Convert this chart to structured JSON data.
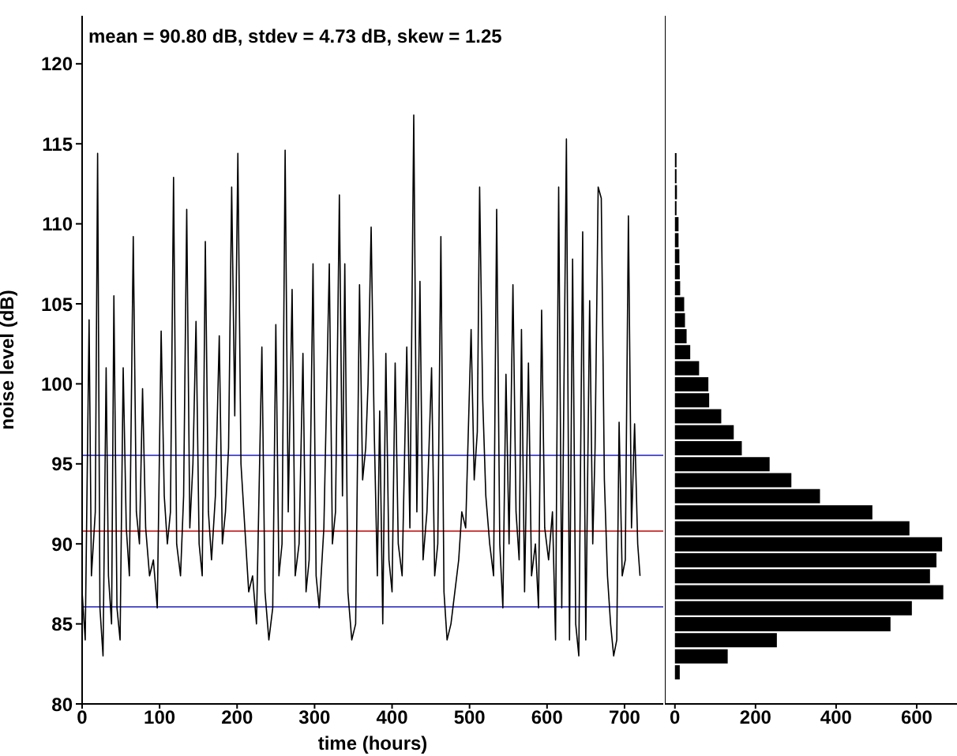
{
  "chart_data": [
    {
      "type": "line",
      "xlabel": "time (hours)",
      "ylabel": "noise level (dB)",
      "annotations": [
        "mean = 90.80 dB, stdev = 4.73 dB, skew = 1.25"
      ],
      "xlim": [
        0,
        750
      ],
      "xticks": [
        0,
        100,
        200,
        300,
        400,
        500,
        600,
        700
      ],
      "ylim": [
        80,
        123
      ],
      "yticks": [
        80,
        85,
        90,
        95,
        100,
        105,
        110,
        115,
        120
      ],
      "grid": false,
      "legend": false,
      "marker": "none",
      "line_style": "solid",
      "ref_lines": [
        {
          "axis": "y",
          "value": 90.8,
          "color": "#cc4444"
        },
        {
          "axis": "y",
          "value": 95.53,
          "color": "#5555cc"
        },
        {
          "axis": "y",
          "value": 86.07,
          "color": "#5555cc"
        }
      ],
      "series": [
        {
          "color": "#000000",
          "x": [
            0,
            4,
            9,
            12,
            17,
            20,
            23,
            27,
            31,
            34,
            38,
            41,
            45,
            49,
            53,
            57,
            61,
            66,
            70,
            74,
            78,
            82,
            87,
            92,
            97,
            102,
            106,
            110,
            114,
            118,
            122,
            127,
            131,
            135,
            139,
            143,
            147,
            151,
            155,
            159,
            163,
            167,
            172,
            177,
            181,
            185,
            189,
            193,
            197,
            201,
            205,
            210,
            215,
            220,
            225,
            232,
            236,
            241,
            246,
            250,
            254,
            258,
            262,
            266,
            271,
            275,
            280,
            285,
            289,
            293,
            298,
            302,
            306,
            312,
            319,
            323,
            327,
            332,
            336,
            339,
            343,
            348,
            353,
            358,
            362,
            366,
            369,
            373,
            377,
            381,
            384,
            388,
            392,
            396,
            400,
            404,
            408,
            413,
            419,
            423,
            428,
            432,
            436,
            440,
            445,
            451,
            455,
            459,
            463,
            467,
            471,
            476,
            481,
            486,
            490,
            495,
            502,
            506,
            510,
            513,
            517,
            521,
            526,
            531,
            535,
            539,
            543,
            547,
            551,
            556,
            560,
            564,
            567,
            571,
            576,
            580,
            585,
            589,
            593,
            597,
            602,
            607,
            611,
            615,
            619,
            625,
            629,
            633,
            637,
            641,
            646,
            650,
            655,
            659,
            662,
            666,
            670,
            674,
            678,
            682,
            686,
            690,
            693,
            697,
            701,
            705,
            709,
            713,
            717,
            720
          ],
          "values": [
            87,
            84,
            104,
            88,
            92,
            114.4,
            86,
            83,
            101,
            88,
            85,
            105.5,
            86,
            84,
            101,
            91,
            88,
            109.2,
            92,
            90,
            99.7,
            91,
            88,
            89,
            86,
            103.3,
            93,
            90,
            92,
            112.9,
            90,
            88,
            93,
            110.9,
            91,
            95,
            103.9,
            90,
            88,
            108.9,
            92,
            89,
            93,
            103,
            90,
            92,
            96,
            112.3,
            98,
            114.4,
            95,
            91,
            87,
            88,
            85,
            102.3,
            87,
            84,
            86,
            103.7,
            88,
            90,
            114.6,
            92,
            105.9,
            88,
            90,
            101.9,
            87,
            89,
            107.5,
            88,
            86,
            91,
            107.5,
            90,
            92,
            111.8,
            93,
            107.5,
            87,
            84,
            85,
            106.2,
            94,
            96,
            100,
            109.8,
            97,
            88,
            98.3,
            85,
            101.9,
            89,
            87,
            101.3,
            90,
            88,
            102.3,
            91,
            116.8,
            92,
            106.4,
            89,
            92,
            101,
            88,
            90,
            109.2,
            87,
            84,
            85,
            87,
            89,
            92,
            91,
            103.4,
            94,
            97,
            112.3,
            99,
            93,
            90,
            88,
            110.9,
            90,
            86,
            100.6,
            90,
            106.2,
            92,
            89,
            103.4,
            87,
            101.3,
            88,
            90,
            86,
            104.6,
            91,
            89,
            92,
            84,
            112.3,
            86,
            115.3,
            84,
            107.8,
            85,
            83,
            109.5,
            84,
            105.2,
            90,
            96,
            112.3,
            111.6,
            94,
            88,
            85,
            83,
            84,
            97.6,
            88,
            89,
            110.5,
            91,
            97.5,
            90,
            88
          ]
        }
      ]
    },
    {
      "type": "histogram",
      "orientation": "horizontal",
      "color": "#000000",
      "bins": [
        81.5,
        82.5,
        83.5,
        84.5,
        85.5,
        86.5,
        87.5,
        88.5,
        89.5,
        90.5,
        91.5,
        92.5,
        93.5,
        94.5,
        95.5,
        96.5,
        97.5,
        98.5,
        99.5,
        100.5,
        101.5,
        102.5,
        103.5,
        104.5,
        105.5,
        106.5,
        107.5,
        108.5,
        109.5,
        110.5,
        111.5,
        112.5,
        113.5,
        114.5
      ],
      "values": [
        12,
        131,
        253,
        535,
        588,
        666,
        633,
        649,
        663,
        582,
        490,
        360,
        289,
        235,
        166,
        146,
        115,
        85,
        83,
        60,
        38,
        29,
        25,
        23,
        13,
        12,
        11,
        9,
        9,
        4,
        5,
        4,
        4
      ],
      "xlim": [
        -25,
        700
      ],
      "xticks": [
        0,
        200,
        400,
        600
      ],
      "ylim": [
        80,
        123
      ],
      "yticks": [
        80,
        85,
        90,
        95,
        100,
        105,
        110,
        115,
        120
      ],
      "tick_labels": "x",
      "grid": false,
      "legend": false
    }
  ]
}
